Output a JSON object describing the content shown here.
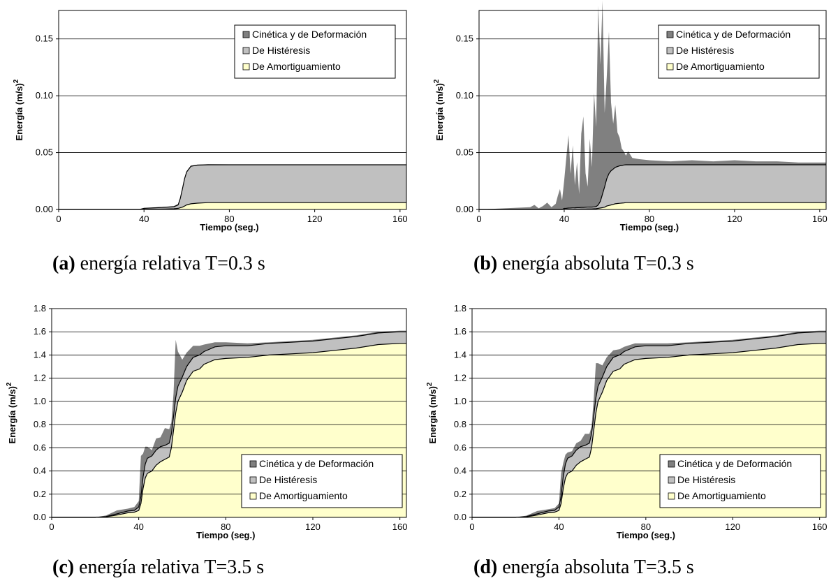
{
  "panels": [
    {
      "caption_tag": "(a)",
      "caption_text": " energía relativa T=0.3 s",
      "chart_data": {
        "type": "area",
        "title": "",
        "xlabel": "Tiempo (seg.)",
        "ylabel": "Energía (m/s)",
        "ylabel_sup": "2",
        "xlim": [
          0,
          163
        ],
        "ylim": [
          0,
          0.175
        ],
        "xticks": [
          0,
          40,
          80,
          120,
          160
        ],
        "yticks": [
          0.0,
          0.05,
          0.1,
          0.15
        ],
        "ytick_labels": [
          "0.00",
          "0.05",
          "0.10",
          "0.15"
        ],
        "grid": true,
        "legend_position": "top-right",
        "legend": [
          "Cinética y de Deformación",
          "De Histéresis",
          "De Amortiguamiento"
        ],
        "colors": {
          "kinetic": "#808080",
          "hysteresis": "#c0c0c0",
          "damping": "#ffffcc"
        },
        "x": [
          0,
          20,
          30,
          38,
          40,
          45,
          50,
          54,
          56,
          57,
          58,
          59,
          60,
          62,
          65,
          70,
          80,
          100,
          120,
          140,
          160,
          163
        ],
        "series": [
          {
            "name": "De Amortiguamiento",
            "values": [
              0,
              0,
              0,
              0,
              0.0002,
              0.0003,
              0.0004,
              0.0006,
              0.001,
              0.0015,
              0.002,
              0.003,
              0.004,
              0.005,
              0.0055,
              0.006,
              0.006,
              0.006,
              0.006,
              0.006,
              0.006,
              0.006
            ]
          },
          {
            "name": "De Histéresis",
            "values": [
              0,
              0,
              0,
              0,
              0.0008,
              0.0012,
              0.0015,
              0.0018,
              0.003,
              0.008,
              0.016,
              0.024,
              0.029,
              0.033,
              0.0335,
              0.0333,
              0.0333,
              0.0333,
              0.0333,
              0.0333,
              0.0333,
              0.0333
            ]
          },
          {
            "name": "Cinética y de Deformación",
            "values": [
              0,
              0,
              0,
              0,
              0,
              0.0003,
              0.0005,
              0.0006,
              0.001,
              0.001,
              0.001,
              0.001,
              0.0008,
              0.0006,
              0.0005,
              0.0004,
              0.0003,
              0.0003,
              0.0003,
              0.0003,
              0.0003,
              0.0003
            ]
          }
        ]
      }
    },
    {
      "caption_tag": "(b)",
      "caption_text": " energía absoluta T=0.3 s",
      "chart_data": {
        "type": "area",
        "title": "",
        "xlabel": "Tiempo (seg.)",
        "ylabel": "Energía (m/s)",
        "ylabel_sup": "2",
        "xlim": [
          0,
          163
        ],
        "ylim": [
          0,
          0.175
        ],
        "xticks": [
          0,
          40,
          80,
          120,
          160
        ],
        "yticks": [
          0.0,
          0.05,
          0.1,
          0.15
        ],
        "ytick_labels": [
          "0.00",
          "0.05",
          "0.10",
          "0.15"
        ],
        "grid": true,
        "legend_position": "top-right",
        "legend": [
          "Cinética y de Deformación",
          "De Histéresis",
          "De Amortiguamiento"
        ],
        "colors": {
          "kinetic": "#808080",
          "hysteresis": "#c0c0c0",
          "damping": "#ffffcc"
        },
        "x": [
          0,
          24,
          26,
          28,
          30,
          32,
          34,
          36,
          37,
          38,
          39,
          40,
          41,
          42,
          43,
          44,
          45,
          46,
          47,
          48,
          49,
          50,
          51,
          52,
          53,
          54,
          55,
          56,
          57,
          58,
          59,
          60,
          61,
          62,
          63,
          64,
          65,
          66,
          67,
          68,
          69,
          70,
          72,
          75,
          80,
          90,
          100,
          110,
          120,
          130,
          140,
          150,
          160,
          163
        ],
        "series": [
          {
            "name": "De Amortiguamiento",
            "values": [
              0,
              0,
              0,
              0,
              0,
              0,
              0,
              0,
              0,
              0,
              0,
              0.0001,
              0.0001,
              0.0002,
              0.0002,
              0.0002,
              0.0003,
              0.0003,
              0.0003,
              0.0004,
              0.0004,
              0.0004,
              0.0005,
              0.0005,
              0.0005,
              0.0006,
              0.0007,
              0.001,
              0.0013,
              0.0016,
              0.002,
              0.003,
              0.0035,
              0.004,
              0.0045,
              0.005,
              0.0052,
              0.0054,
              0.0056,
              0.0058,
              0.006,
              0.006,
              0.006,
              0.006,
              0.006,
              0.006,
              0.006,
              0.006,
              0.006,
              0.006,
              0.006,
              0.006,
              0.006,
              0.006
            ]
          },
          {
            "name": "De Histéresis",
            "values": [
              0,
              0,
              0,
              0,
              0,
              0,
              0,
              0,
              0,
              0,
              0,
              0.0008,
              0.0009,
              0.001,
              0.0011,
              0.0012,
              0.0012,
              0.0013,
              0.0013,
              0.0014,
              0.0014,
              0.0015,
              0.0015,
              0.0016,
              0.0016,
              0.0017,
              0.0018,
              0.003,
              0.006,
              0.012,
              0.018,
              0.024,
              0.028,
              0.03,
              0.031,
              0.032,
              0.0325,
              0.033,
              0.033,
              0.0333,
              0.0333,
              0.0333,
              0.0333,
              0.0333,
              0.0333,
              0.0333,
              0.0333,
              0.0333,
              0.0333,
              0.0333,
              0.0333,
              0.0333,
              0.0333,
              0.0333
            ]
          },
          {
            "name": "Cinética y de Deformación",
            "values": [
              0,
              0.002,
              0.004,
              0.001,
              0.003,
              0.006,
              0.002,
              0.005,
              0.012,
              0.018,
              0.008,
              0.025,
              0.045,
              0.064,
              0.03,
              0.055,
              0.02,
              0.04,
              0.012,
              0.065,
              0.08,
              0.03,
              0.018,
              0.06,
              0.035,
              0.1,
              0.07,
              0.175,
              0.12,
              0.17,
              0.065,
              0.09,
              0.125,
              0.06,
              0.04,
              0.055,
              0.03,
              0.025,
              0.015,
              0.012,
              0.008,
              0.012,
              0.006,
              0.005,
              0.004,
              0.003,
              0.004,
              0.003,
              0.004,
              0.003,
              0.003,
              0.002,
              0.002,
              0.002
            ]
          }
        ]
      }
    },
    {
      "caption_tag": "(c)",
      "caption_text": " energía relativa T=3.5 s",
      "chart_data": {
        "type": "area",
        "title": "",
        "xlabel": "Tiempo (seg.)",
        "ylabel": "Energía (m/s)",
        "ylabel_sup": "2",
        "xlim": [
          0,
          163
        ],
        "ylim": [
          0,
          1.8
        ],
        "xticks": [
          0,
          40,
          80,
          120,
          160
        ],
        "yticks": [
          0.0,
          0.2,
          0.4,
          0.6,
          0.8,
          1.0,
          1.2,
          1.4,
          1.6,
          1.8
        ],
        "ytick_labels": [
          "0.0",
          "0.2",
          "0.4",
          "0.6",
          "0.8",
          "1.0",
          "1.2",
          "1.4",
          "1.6",
          "1.8"
        ],
        "grid": true,
        "legend_position": "bottom-right",
        "legend": [
          "Cinética y de Deformación",
          "De Histéresis",
          "De Amortiguamiento"
        ],
        "colors": {
          "kinetic": "#808080",
          "hysteresis": "#c0c0c0",
          "damping": "#ffffcc"
        },
        "x": [
          0,
          20,
          25,
          30,
          35,
          38,
          40,
          41,
          42,
          43,
          44,
          46,
          48,
          50,
          52,
          54,
          55,
          56,
          57,
          58,
          60,
          62,
          65,
          68,
          70,
          75,
          80,
          90,
          100,
          110,
          120,
          130,
          140,
          150,
          160,
          163
        ],
        "series": [
          {
            "name": "De Amortiguamiento",
            "values": [
              0,
              0,
              0.005,
              0.02,
              0.04,
              0.045,
              0.06,
              0.12,
              0.25,
              0.34,
              0.38,
              0.4,
              0.45,
              0.48,
              0.5,
              0.52,
              0.6,
              0.75,
              0.9,
              1.0,
              1.08,
              1.18,
              1.26,
              1.28,
              1.32,
              1.36,
              1.37,
              1.38,
              1.4,
              1.41,
              1.42,
              1.44,
              1.46,
              1.49,
              1.5,
              1.5
            ]
          },
          {
            "name": "De Histéresis",
            "values": [
              0,
              0,
              0.002,
              0.01,
              0.015,
              0.015,
              0.03,
              0.06,
              0.1,
              0.12,
              0.13,
              0.13,
              0.13,
              0.13,
              0.12,
              0.12,
              0.12,
              0.12,
              0.13,
              0.13,
              0.13,
              0.12,
              0.12,
              0.12,
              0.11,
              0.11,
              0.11,
              0.1,
              0.1,
              0.1,
              0.1,
              0.1,
              0.1,
              0.1,
              0.1,
              0.1
            ]
          },
          {
            "name": "Cinética y de Deformación",
            "values": [
              0,
              0,
              0.01,
              0.03,
              0.02,
              0.03,
              0.05,
              0.35,
              0.2,
              0.15,
              0.1,
              0.05,
              0.1,
              0.08,
              0.15,
              0.12,
              0.1,
              0.2,
              0.5,
              0.3,
              0.15,
              0.12,
              0.1,
              0.08,
              0.06,
              0.04,
              0.03,
              0.02,
              0.01,
              0.01,
              0.01,
              0.01,
              0.01,
              0.01,
              0.01,
              0.01
            ]
          }
        ]
      }
    },
    {
      "caption_tag": "(d)",
      "caption_text": " energía absoluta T=3.5 s",
      "chart_data": {
        "type": "area",
        "title": "",
        "xlabel": "Tiempo (seg.)",
        "ylabel": "Energía (m/s)",
        "ylabel_sup": "2",
        "xlim": [
          0,
          163
        ],
        "ylim": [
          0,
          1.8
        ],
        "xticks": [
          0,
          40,
          80,
          120,
          160
        ],
        "yticks": [
          0.0,
          0.2,
          0.4,
          0.6,
          0.8,
          1.0,
          1.2,
          1.4,
          1.6,
          1.8
        ],
        "ytick_labels": [
          "0.0",
          "0.2",
          "0.4",
          "0.6",
          "0.8",
          "1.0",
          "1.2",
          "1.4",
          "1.6",
          "1.8"
        ],
        "grid": true,
        "legend_position": "bottom-right",
        "legend": [
          "Cinética y de Deformación",
          "De Histéresis",
          "De Amortiguamiento"
        ],
        "colors": {
          "kinetic": "#808080",
          "hysteresis": "#c0c0c0",
          "damping": "#ffffcc"
        },
        "x": [
          0,
          20,
          25,
          30,
          35,
          38,
          40,
          41,
          42,
          43,
          44,
          46,
          48,
          50,
          52,
          54,
          55,
          56,
          57,
          58,
          60,
          62,
          65,
          68,
          70,
          75,
          80,
          90,
          100,
          110,
          120,
          130,
          140,
          150,
          160,
          163
        ],
        "series": [
          {
            "name": "De Amortiguamiento",
            "values": [
              0,
              0,
              0.005,
              0.02,
              0.04,
              0.045,
              0.06,
              0.12,
              0.25,
              0.34,
              0.38,
              0.4,
              0.45,
              0.48,
              0.5,
              0.52,
              0.6,
              0.75,
              0.9,
              1.0,
              1.08,
              1.18,
              1.26,
              1.28,
              1.32,
              1.36,
              1.37,
              1.38,
              1.4,
              1.41,
              1.42,
              1.44,
              1.46,
              1.49,
              1.5,
              1.5
            ]
          },
          {
            "name": "De Histéresis",
            "values": [
              0,
              0,
              0.002,
              0.01,
              0.015,
              0.015,
              0.03,
              0.06,
              0.1,
              0.12,
              0.13,
              0.13,
              0.13,
              0.13,
              0.12,
              0.12,
              0.12,
              0.12,
              0.13,
              0.13,
              0.13,
              0.12,
              0.12,
              0.12,
              0.11,
              0.11,
              0.11,
              0.1,
              0.1,
              0.1,
              0.1,
              0.1,
              0.1,
              0.1,
              0.1,
              0.1
            ]
          },
          {
            "name": "Cinética y de Deformación",
            "values": [
              0,
              0,
              0.008,
              0.025,
              0.015,
              0.02,
              0.03,
              0.2,
              0.12,
              0.08,
              0.05,
              0.04,
              0.06,
              0.05,
              0.1,
              0.08,
              0.06,
              0.15,
              0.3,
              0.2,
              0.1,
              0.08,
              0.06,
              0.05,
              0.04,
              0.03,
              0.02,
              0.02,
              0.01,
              0.01,
              0.01,
              0.01,
              0.01,
              0.01,
              0.01,
              0.01
            ]
          }
        ]
      }
    }
  ]
}
